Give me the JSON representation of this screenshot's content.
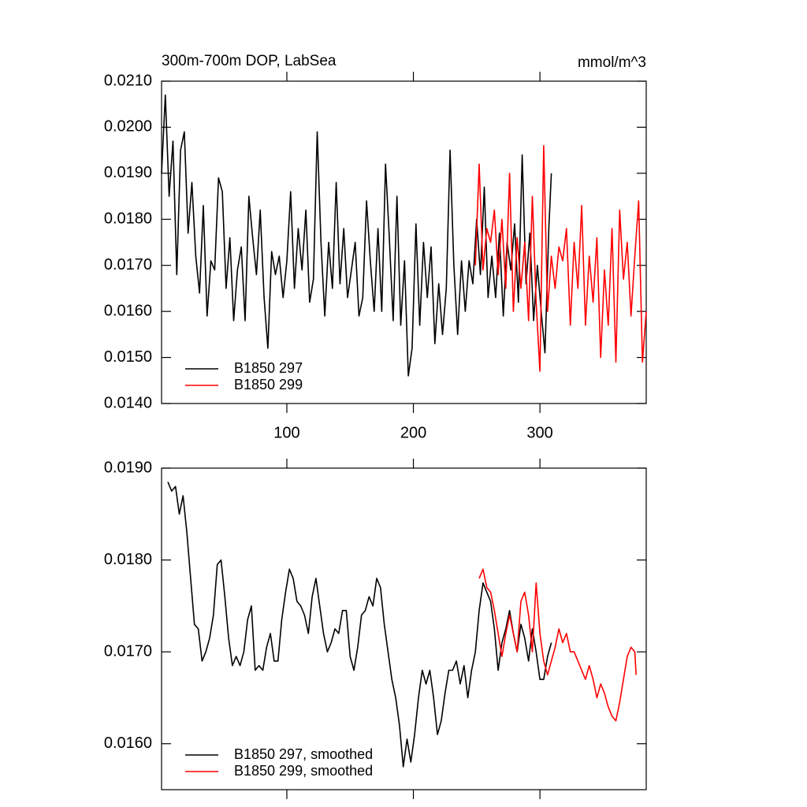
{
  "chart_data": [
    {
      "type": "line",
      "title": "300m-700m DOP, LabSea",
      "subtitle": "mmol/m^3",
      "xlim": [
        1,
        384
      ],
      "xticks": [
        100,
        200,
        300
      ],
      "ylim": [
        0.014,
        0.021
      ],
      "yticks": [
        {
          "value": 0.014,
          "label": "0.0140"
        },
        {
          "value": 0.015,
          "label": "0.0150"
        },
        {
          "value": 0.016,
          "label": "0.0160"
        },
        {
          "value": 0.017,
          "label": "0.0170"
        },
        {
          "value": 0.018,
          "label": "0.0180"
        },
        {
          "value": 0.019,
          "label": "0.0190"
        },
        {
          "value": 0.02,
          "label": "0.0200"
        },
        {
          "value": 0.021,
          "label": "0.0210"
        }
      ],
      "legend": "bottom-left",
      "series": [
        {
          "name": "B1850 297",
          "color": "#000000",
          "x": [
            1,
            4,
            7,
            10,
            13,
            16,
            19,
            22,
            25,
            28,
            31,
            34,
            37,
            40,
            43,
            46,
            49,
            52,
            55,
            58,
            61,
            64,
            67,
            70,
            73,
            76,
            79,
            82,
            85,
            88,
            91,
            94,
            97,
            100,
            103,
            106,
            109,
            112,
            115,
            118,
            121,
            124,
            127,
            130,
            133,
            136,
            139,
            142,
            145,
            148,
            151,
            154,
            157,
            160,
            163,
            166,
            169,
            172,
            175,
            178,
            181,
            184,
            187,
            190,
            193,
            196,
            199,
            202,
            205,
            208,
            211,
            214,
            217,
            220,
            223,
            226,
            229,
            232,
            235,
            238,
            241,
            244,
            247,
            250,
            253,
            256,
            259,
            262,
            265,
            268,
            271,
            274,
            277,
            280,
            283,
            286,
            289,
            292,
            295,
            298,
            301,
            304,
            307,
            309
          ],
          "values": [
            0.019,
            0.0207,
            0.0185,
            0.0197,
            0.0168,
            0.0195,
            0.0199,
            0.0177,
            0.0188,
            0.0172,
            0.0164,
            0.0183,
            0.0159,
            0.0171,
            0.0169,
            0.0189,
            0.0186,
            0.0165,
            0.0176,
            0.0158,
            0.0169,
            0.0174,
            0.0158,
            0.0185,
            0.0176,
            0.0168,
            0.0182,
            0.0163,
            0.0152,
            0.0173,
            0.0168,
            0.0172,
            0.0163,
            0.0171,
            0.0186,
            0.0165,
            0.0178,
            0.0169,
            0.0182,
            0.0162,
            0.0167,
            0.0199,
            0.0175,
            0.0159,
            0.0175,
            0.0165,
            0.0188,
            0.0166,
            0.0178,
            0.0163,
            0.0169,
            0.0175,
            0.0159,
            0.0163,
            0.0184,
            0.0171,
            0.016,
            0.0178,
            0.016,
            0.0192,
            0.0176,
            0.0158,
            0.0185,
            0.0157,
            0.0171,
            0.0146,
            0.0152,
            0.0179,
            0.0157,
            0.0175,
            0.0163,
            0.0174,
            0.0153,
            0.0166,
            0.0155,
            0.0165,
            0.0195,
            0.017,
            0.0155,
            0.0171,
            0.016,
            0.0171,
            0.0166,
            0.018,
            0.0168,
            0.0187,
            0.0163,
            0.0172,
            0.0163,
            0.0177,
            0.0159,
            0.0175,
            0.0169,
            0.0179,
            0.0162,
            0.0194,
            0.0166,
            0.0177,
            0.0158,
            0.017,
            0.016,
            0.0151,
            0.0178,
            0.019
          ]
        },
        {
          "name": "B1850 299",
          "color": "#ff0000",
          "x": [
            249,
            252,
            255,
            258,
            261,
            264,
            267,
            270,
            273,
            276,
            279,
            282,
            285,
            288,
            291,
            294,
            297,
            300,
            303,
            306,
            309,
            312,
            315,
            318,
            321,
            324,
            327,
            330,
            333,
            336,
            339,
            342,
            345,
            348,
            351,
            354,
            357,
            360,
            363,
            366,
            369,
            372,
            375,
            378,
            381,
            384
          ],
          "values": [
            0.017,
            0.0192,
            0.0169,
            0.0178,
            0.0175,
            0.0182,
            0.0168,
            0.018,
            0.0165,
            0.019,
            0.016,
            0.0176,
            0.0165,
            0.0175,
            0.0158,
            0.0185,
            0.0162,
            0.0147,
            0.0196,
            0.016,
            0.0172,
            0.0165,
            0.0174,
            0.0171,
            0.0178,
            0.0157,
            0.0175,
            0.0165,
            0.0183,
            0.0157,
            0.0172,
            0.0162,
            0.0176,
            0.015,
            0.0169,
            0.0157,
            0.0178,
            0.0149,
            0.0182,
            0.0167,
            0.0175,
            0.0159,
            0.0172,
            0.0184,
            0.0149,
            0.016
          ]
        }
      ]
    },
    {
      "type": "line",
      "xlim": [
        1,
        384
      ],
      "xticks": [
        100,
        200,
        300
      ],
      "xtick_labels": false,
      "ylim": [
        0.0155,
        0.019
      ],
      "yticks": [
        {
          "value": 0.016,
          "label": "0.0160"
        },
        {
          "value": 0.017,
          "label": "0.0170"
        },
        {
          "value": 0.018,
          "label": "0.0180"
        },
        {
          "value": 0.019,
          "label": "0.0190"
        }
      ],
      "legend": "bottom-left",
      "series": [
        {
          "name": "B1850 297, smoothed",
          "color": "#000000",
          "x": [
            6,
            9,
            12,
            15,
            18,
            21,
            24,
            27,
            30,
            33,
            36,
            39,
            42,
            45,
            48,
            51,
            54,
            57,
            60,
            63,
            66,
            69,
            72,
            75,
            78,
            81,
            84,
            87,
            90,
            93,
            96,
            99,
            102,
            105,
            108,
            111,
            114,
            117,
            120,
            123,
            126,
            129,
            132,
            135,
            138,
            141,
            144,
            147,
            150,
            153,
            156,
            159,
            162,
            165,
            168,
            171,
            174,
            177,
            180,
            183,
            186,
            189,
            192,
            195,
            198,
            201,
            204,
            207,
            210,
            213,
            216,
            219,
            222,
            225,
            228,
            231,
            234,
            237,
            240,
            243,
            246,
            249,
            252,
            255,
            258,
            261,
            264,
            267,
            270,
            273,
            276,
            279,
            282,
            285,
            288,
            291,
            294,
            297,
            300,
            303,
            306,
            309
          ],
          "values": [
            0.01885,
            0.01875,
            0.0188,
            0.0185,
            0.0187,
            0.0183,
            0.0178,
            0.0173,
            0.01725,
            0.0169,
            0.017,
            0.01715,
            0.0174,
            0.01795,
            0.018,
            0.0176,
            0.01715,
            0.01685,
            0.01695,
            0.01685,
            0.017,
            0.01735,
            0.0175,
            0.0168,
            0.01685,
            0.0168,
            0.01705,
            0.0172,
            0.0169,
            0.0169,
            0.01735,
            0.01765,
            0.0179,
            0.0178,
            0.01755,
            0.0175,
            0.0174,
            0.0172,
            0.0176,
            0.0178,
            0.0175,
            0.0172,
            0.017,
            0.0171,
            0.01725,
            0.0172,
            0.01745,
            0.01745,
            0.01695,
            0.0168,
            0.01705,
            0.0174,
            0.01745,
            0.0176,
            0.0175,
            0.0178,
            0.0177,
            0.0173,
            0.017,
            0.0167,
            0.0165,
            0.0162,
            0.01575,
            0.01605,
            0.0158,
            0.0161,
            0.0165,
            0.0168,
            0.01665,
            0.0168,
            0.0165,
            0.0161,
            0.01625,
            0.01655,
            0.0168,
            0.0168,
            0.0169,
            0.01665,
            0.01685,
            0.0165,
            0.0168,
            0.017,
            0.01745,
            0.01775,
            0.01765,
            0.01755,
            0.01725,
            0.0168,
            0.0171,
            0.01725,
            0.01745,
            0.0172,
            0.017,
            0.0173,
            0.01715,
            0.0169,
            0.01725,
            0.017,
            0.0167,
            0.0167,
            0.01695,
            0.0171
          ]
        },
        {
          "name": "B1850 299, smoothed",
          "color": "#ff0000",
          "x": [
            252,
            255,
            258,
            261,
            264,
            267,
            270,
            273,
            276,
            279,
            282,
            285,
            288,
            291,
            294,
            297,
            300,
            303,
            306,
            309,
            312,
            315,
            318,
            321,
            324,
            327,
            330,
            333,
            336,
            339,
            342,
            345,
            348,
            351,
            354,
            357,
            360,
            363,
            366,
            369,
            372,
            375,
            376
          ],
          "values": [
            0.0178,
            0.0179,
            0.0177,
            0.01765,
            0.01745,
            0.0172,
            0.01695,
            0.0172,
            0.0174,
            0.0172,
            0.017,
            0.01755,
            0.01765,
            0.0174,
            0.017,
            0.01775,
            0.0172,
            0.0169,
            0.01675,
            0.0169,
            0.01705,
            0.01725,
            0.0171,
            0.0172,
            0.017,
            0.017,
            0.0169,
            0.0168,
            0.0167,
            0.01685,
            0.0167,
            0.0165,
            0.01665,
            0.01655,
            0.0164,
            0.0163,
            0.01625,
            0.01645,
            0.0167,
            0.01695,
            0.01705,
            0.017,
            0.01675
          ]
        }
      ]
    }
  ]
}
